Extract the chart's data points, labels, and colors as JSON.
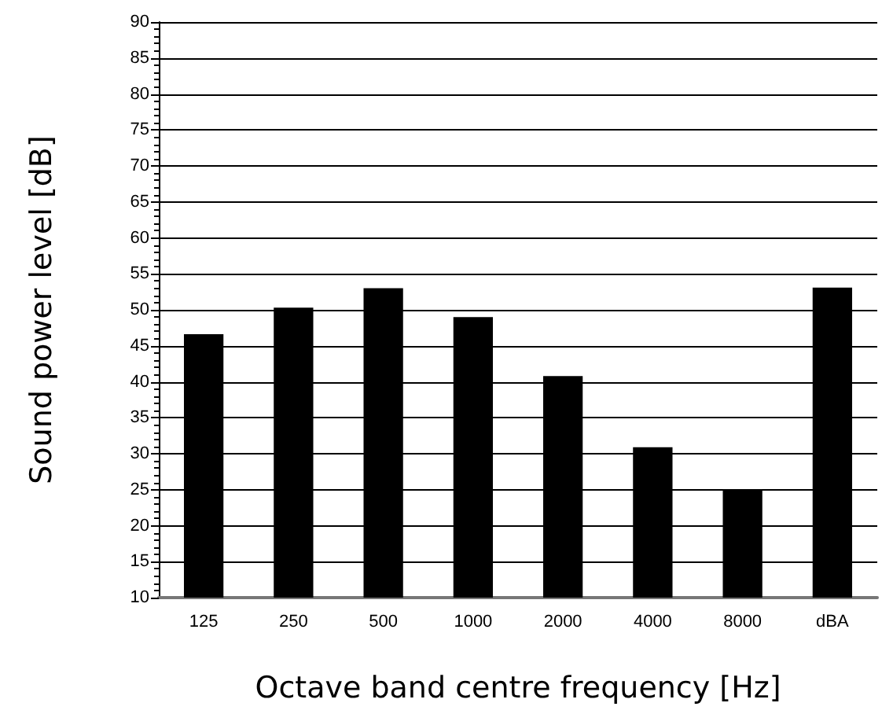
{
  "chart_data": {
    "type": "bar",
    "xlabel": "Octave band centre frequency [Hz]",
    "ylabel": "Sound power level [dB]",
    "categories": [
      "125",
      "250",
      "500",
      "1000",
      "2000",
      "4000",
      "8000",
      "dBA"
    ],
    "values": [
      46.6,
      50.3,
      53,
      49,
      40.8,
      30.9,
      24.9,
      53.1
    ],
    "color": "#000000",
    "ylim": [
      10,
      90
    ],
    "yticks": [
      10,
      15,
      20,
      25,
      30,
      35,
      40,
      45,
      50,
      55,
      60,
      65,
      70,
      75,
      80,
      85,
      90
    ],
    "grid": "y"
  }
}
